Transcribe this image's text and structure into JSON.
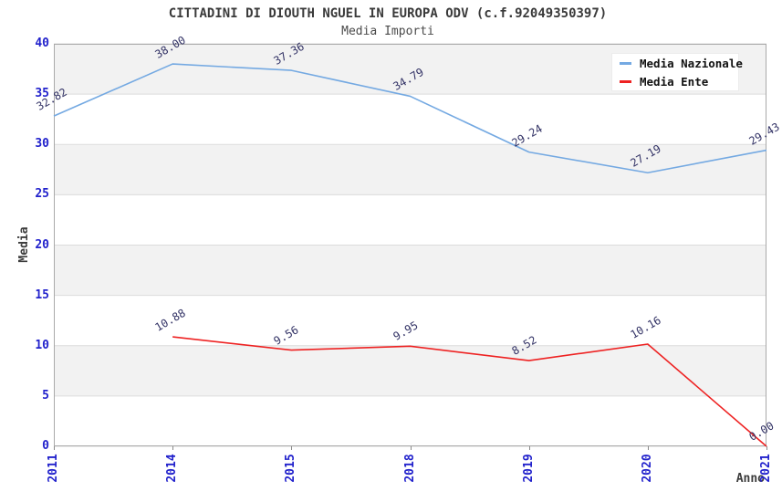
{
  "chart_data": {
    "type": "line",
    "title": "CITTADINI DI DIOUTH NGUEL IN EUROPA ODV (c.f.92049350397)",
    "subtitle": "Media Importi",
    "xlabel": "Anno",
    "ylabel": "Media",
    "categories": [
      "2011",
      "2014",
      "2015",
      "2018",
      "2019",
      "2020",
      "2021"
    ],
    "ylim": [
      0,
      40
    ],
    "yticks": [
      0,
      5,
      10,
      15,
      20,
      25,
      30,
      35,
      40
    ],
    "grid": "horizontal-alternating-bands",
    "legend_position": "top-right-inside",
    "value_label_format": "0.00",
    "series": [
      {
        "name": "Media Nazionale",
        "color": "#74a9e2",
        "values": [
          32.82,
          38.0,
          37.36,
          34.79,
          29.24,
          27.19,
          29.43
        ]
      },
      {
        "name": "Media Ente",
        "color": "#ee2222",
        "values": [
          null,
          10.88,
          9.56,
          9.95,
          8.52,
          10.16,
          0.0
        ]
      }
    ]
  }
}
